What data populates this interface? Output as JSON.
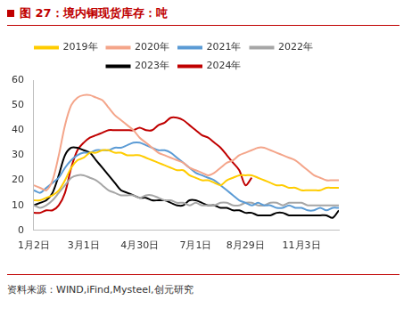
{
  "chart_data": {
    "type": "line",
    "title": "图 27：境内铜现货库存：吨",
    "source": "资料来源：WIND,iFind,Mysteel,创元研究",
    "categories": [
      "1月2日",
      null,
      null,
      null,
      null,
      null,
      null,
      null,
      "3月1日",
      null,
      null,
      null,
      null,
      null,
      null,
      null,
      null,
      "4月30日",
      null,
      null,
      null,
      null,
      null,
      null,
      null,
      null,
      "7月1日",
      null,
      null,
      null,
      null,
      null,
      null,
      null,
      "8月29日",
      null,
      null,
      null,
      null,
      null,
      null,
      null,
      null,
      "11月3日",
      null,
      null,
      null,
      null,
      null,
      null
    ],
    "series": [
      {
        "name": "2019年",
        "color": "#ffcc00",
        "values": [
          12,
          12,
          13,
          14,
          16,
          20,
          25,
          28,
          29,
          31,
          31,
          32,
          32,
          31,
          31,
          30,
          30,
          30,
          29,
          28,
          27,
          26,
          25,
          24,
          24,
          22,
          21,
          20,
          20,
          19,
          18,
          20,
          21,
          22,
          22,
          22,
          21,
          20,
          19,
          18,
          18,
          17,
          17,
          16,
          16,
          16,
          16,
          17,
          17,
          17
        ]
      },
      {
        "name": "2020年",
        "color": "#f4a58a",
        "values": [
          18,
          17,
          16,
          20,
          30,
          42,
          50,
          53,
          54,
          54,
          53,
          52,
          49,
          46,
          44,
          42,
          40,
          37,
          35,
          33,
          31,
          30,
          29,
          28,
          27,
          25,
          24,
          23,
          22,
          23,
          25,
          27,
          28,
          30,
          31,
          32,
          33,
          33,
          32,
          31,
          30,
          29,
          28,
          26,
          24,
          22,
          21,
          20,
          20,
          20
        ]
      },
      {
        "name": "2021年",
        "color": "#5b9bd5",
        "values": [
          16,
          15,
          17,
          19,
          21,
          25,
          28,
          30,
          31,
          31,
          32,
          32,
          32,
          33,
          33,
          34,
          35,
          35,
          34,
          33,
          32,
          32,
          31,
          29,
          27,
          25,
          23,
          22,
          21,
          20,
          18,
          16,
          14,
          12,
          11,
          10,
          11,
          10,
          10,
          9,
          9,
          10,
          9,
          9,
          8,
          8,
          9,
          8,
          9,
          9
        ]
      },
      {
        "name": "2022年",
        "color": "#a6a6a6",
        "values": [
          10,
          9,
          10,
          12,
          15,
          18,
          21,
          22,
          22,
          21,
          20,
          18,
          16,
          15,
          14,
          14,
          14,
          13,
          14,
          14,
          13,
          12,
          12,
          11,
          11,
          10,
          11,
          10,
          10,
          10,
          11,
          11,
          10,
          10,
          11,
          11,
          10,
          10,
          11,
          11,
          10,
          11,
          11,
          11,
          10,
          10,
          10,
          10,
          10,
          10
        ]
      },
      {
        "name": "2023年",
        "color": "#000000",
        "values": [
          10,
          11,
          12,
          15,
          22,
          30,
          33,
          33,
          32,
          31,
          28,
          25,
          22,
          19,
          16,
          15,
          14,
          13,
          13,
          12,
          12,
          12,
          11,
          10,
          10,
          12,
          12,
          11,
          10,
          10,
          9,
          9,
          8,
          8,
          7,
          7,
          6,
          6,
          6,
          7,
          7,
          6,
          6,
          6,
          6,
          6,
          6,
          6,
          5,
          8
        ]
      },
      {
        "name": "2024年",
        "color": "#c00000",
        "values": [
          7,
          7,
          8,
          8,
          10,
          15,
          25,
          32,
          35,
          37,
          38,
          39,
          40,
          40,
          40,
          40,
          40,
          41,
          40,
          40,
          42,
          43,
          45,
          45,
          44,
          42,
          40,
          38,
          37,
          35,
          33,
          30,
          27,
          24,
          18,
          21,
          null,
          null,
          null,
          null,
          null,
          null,
          null,
          null,
          null,
          null,
          null,
          null,
          null,
          null
        ]
      }
    ],
    "ylim": [
      0,
      60
    ],
    "yticks": [
      0,
      10,
      20,
      30,
      40,
      50,
      60
    ],
    "grid": false,
    "legend": "top",
    "marker": "none",
    "line_style": "solid"
  }
}
